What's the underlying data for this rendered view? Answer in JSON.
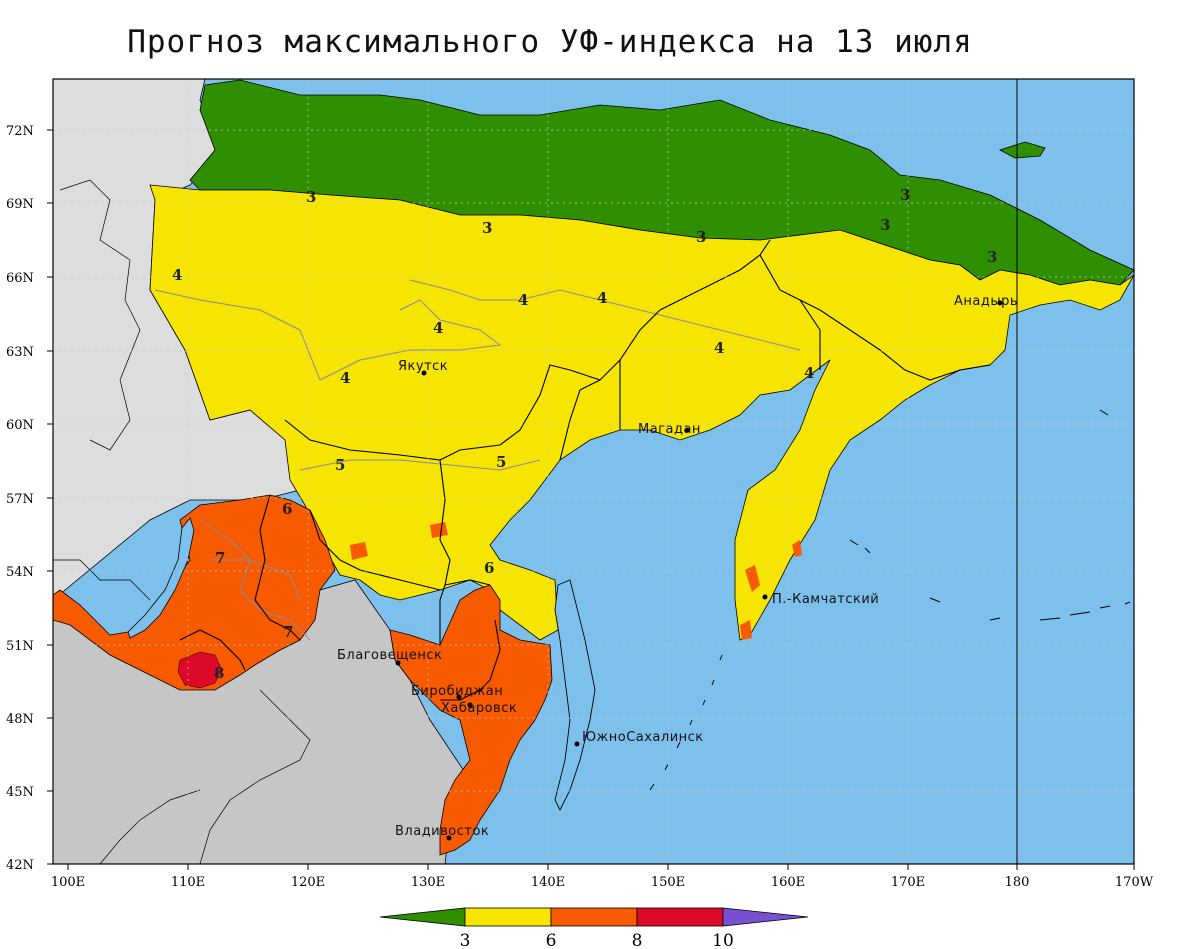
{
  "title": "Прогноз максимального УФ-индекса на 13 июля",
  "axes": {
    "lat_labels": [
      "72N",
      "69N",
      "66N",
      "63N",
      "60N",
      "57N",
      "54N",
      "51N",
      "48N",
      "45N",
      "42N"
    ],
    "lon_labels": [
      "100E",
      "110E",
      "120E",
      "130E",
      "140E",
      "150E",
      "160E",
      "170E",
      "180",
      "170W"
    ]
  },
  "cities": [
    {
      "name": "Якутск"
    },
    {
      "name": "Магадан"
    },
    {
      "name": "Анадырь"
    },
    {
      "name": "П.-Камчатский"
    },
    {
      "name": "Благовещенск"
    },
    {
      "name": "Биробиджан"
    },
    {
      "name": "Хабаровск"
    },
    {
      "name": "ЮжноСахалинск"
    },
    {
      "name": "Владивосток"
    }
  ],
  "contour_labels": [
    "3",
    "3",
    "3",
    "3",
    "3",
    "3",
    "4",
    "4",
    "4",
    "4",
    "4",
    "4",
    "4",
    "5",
    "5",
    "6",
    "6",
    "7",
    "7",
    "8"
  ],
  "colorbar": {
    "labels": [
      "3",
      "6",
      "8",
      "10"
    ],
    "colors": [
      "#2f8f00",
      "#f5e500",
      "#f85a00",
      "#dc0a28",
      "#7850d2"
    ]
  },
  "colors": {
    "ocean": "#7ec0ec",
    "uv_0_3": "#2f8f00",
    "uv_3_6": "#f5e500",
    "uv_6_8": "#f85a00",
    "uv_8_10": "#dc0a28",
    "foreign_land_north": "#dddddd",
    "foreign_land_south": "#c6c6c6"
  }
}
